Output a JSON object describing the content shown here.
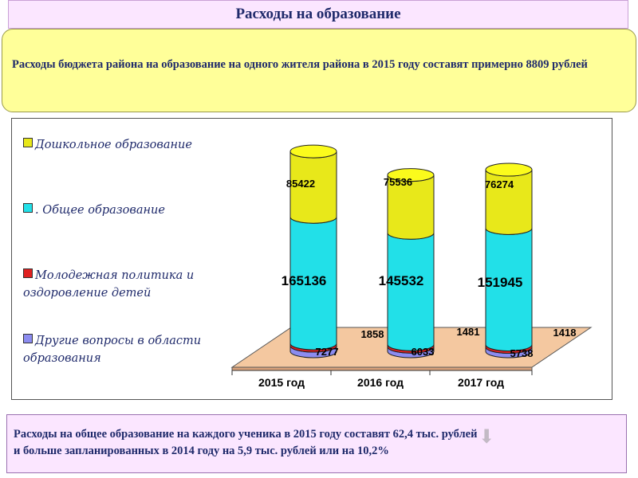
{
  "header": {
    "title": "Расходы на образование"
  },
  "info": {
    "text": "Расходы бюджета района на образование на одного жителя района в 2015 году составят примерно 8809 рублей"
  },
  "footer": {
    "line1": "Расходы на общее образование на каждого ученика в 2015 году составят  62,4 тыс. рублей",
    "line2": "и больше запланированных в 2014 году на  5,9  тыс. рублей или на 10,2%"
  },
  "chart_data": {
    "type": "bar",
    "stacked": true,
    "categories": [
      "2015 год",
      "2016 год",
      "2017 год"
    ],
    "series": [
      {
        "name": "Другие вопросы в области образования",
        "values": [
          7277,
          6033,
          5738
        ],
        "color": "#8c8cf0"
      },
      {
        "name": "Молодежная политика и оздоровление детей",
        "values": [
          1858,
          1481,
          1418
        ],
        "color": "#e02020"
      },
      {
        "name": ". Общее образование",
        "values": [
          165136,
          145532,
          151945
        ],
        "color": "#22e0e8"
      },
      {
        "name": "Дошкольное образование",
        "values": [
          85422,
          75536,
          76274
        ],
        "color": "#e8e81a"
      }
    ],
    "legend_order": [
      3,
      2,
      1,
      0
    ],
    "legend_position": "left",
    "title": "",
    "xlabel": "",
    "ylabel": ""
  }
}
